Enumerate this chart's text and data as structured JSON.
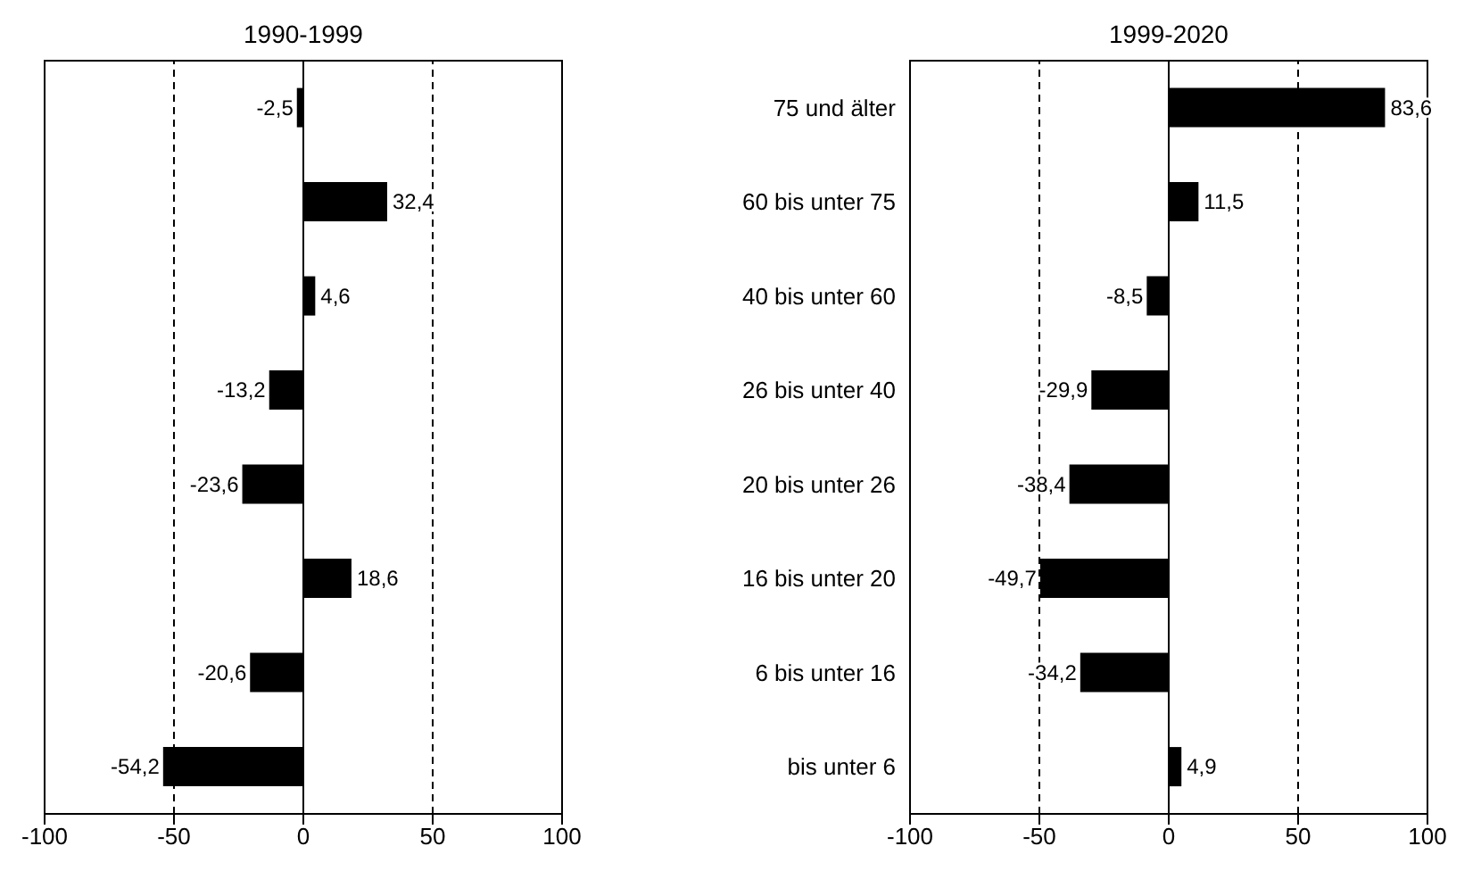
{
  "chart_data": [
    {
      "type": "bar",
      "orientation": "horizontal",
      "title": "1990-1999",
      "categories": [
        null,
        null,
        null,
        null,
        null,
        null,
        null,
        null
      ],
      "values": [
        -2.5,
        32.4,
        4.6,
        -13.2,
        -23.6,
        18.6,
        -20.6,
        -54.2
      ],
      "color": "#000000",
      "value_labels": [
        "-2,5",
        "32,4",
        "4,6",
        "-13,2",
        "-23,6",
        "18,6",
        "-20,6",
        "-54,2"
      ],
      "xlim": [
        -100,
        100
      ],
      "xticks": [
        -100,
        -50,
        0,
        50,
        100
      ],
      "ref_lines": [
        {
          "axis": "x",
          "value": -50,
          "line_style": "dashed",
          "color": "#000000"
        },
        {
          "axis": "x",
          "value": 50,
          "line_style": "dashed",
          "color": "#000000"
        }
      ],
      "legend": false
    },
    {
      "type": "bar",
      "orientation": "horizontal",
      "title": "1999-2020",
      "categories": [
        "75 und älter",
        "60 bis unter 75",
        "40 bis unter 60",
        "26 bis unter 40",
        "20 bis unter 26",
        "16 bis unter 20",
        "6 bis unter 16",
        "bis unter 6"
      ],
      "values": [
        83.6,
        11.5,
        -8.5,
        -29.9,
        -38.4,
        -49.7,
        -34.2,
        4.9
      ],
      "color": "#000000",
      "value_labels": [
        "83,6",
        "11,5",
        "-8,5",
        "-29,9",
        "-38,4",
        "-49,7",
        "-34,2",
        "4,9"
      ],
      "xlim": [
        -100,
        100
      ],
      "xticks": [
        -100,
        -50,
        0,
        50,
        100
      ],
      "ref_lines": [
        {
          "axis": "x",
          "value": -50,
          "line_style": "dashed",
          "color": "#000000"
        },
        {
          "axis": "x",
          "value": 50,
          "line_style": "dashed",
          "color": "#000000"
        }
      ],
      "legend": false
    }
  ]
}
